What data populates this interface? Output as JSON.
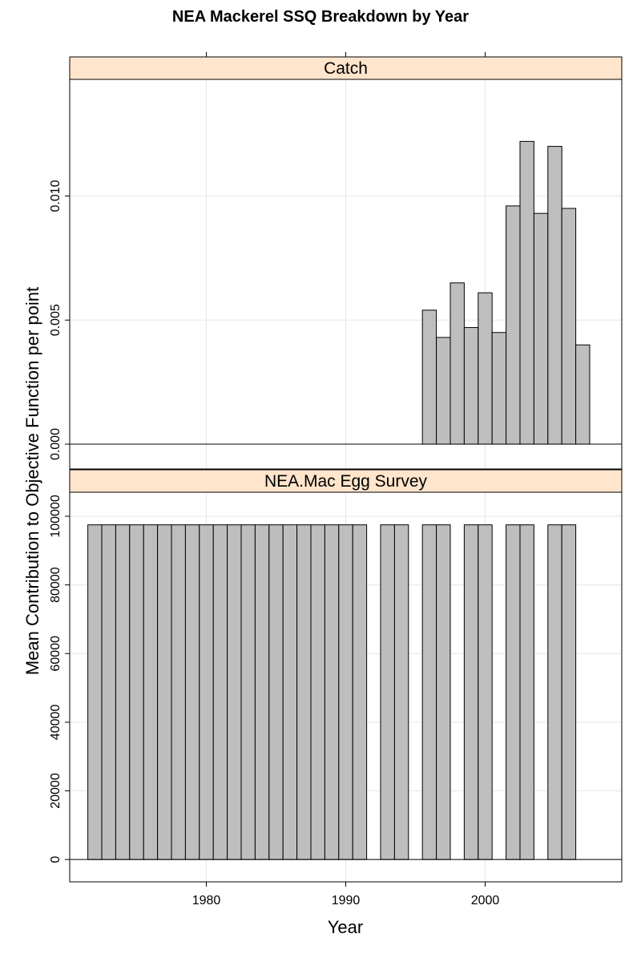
{
  "chart_data": {
    "type": "bar",
    "title": "NEA Mackerel SSQ Breakdown by Year",
    "xlabel": "Year",
    "ylabel": "Mean Contribution to Objective Function per point",
    "xlim": [
      1970.2,
      2009.8
    ],
    "x_ticks": [
      1980,
      1990,
      2000
    ],
    "x_tick_labels": [
      "1980",
      "1990",
      "2000"
    ],
    "grid": true,
    "colors": {
      "bar_fill": "#bebebe",
      "strip_fill": "#ffe5cc",
      "grid": "#e6e6e6"
    },
    "panels": [
      {
        "name": "Catch",
        "ylim": [
          -0.001,
          0.0147
        ],
        "y_ticks": [
          0,
          0.005,
          0.01
        ],
        "y_tick_labels": [
          "0.000",
          "0.005",
          "0.010"
        ],
        "x": [
          1996,
          1997,
          1998,
          1999,
          2000,
          2001,
          2002,
          2003,
          2004,
          2005,
          2006,
          2007
        ],
        "values": [
          0.0054,
          0.0043,
          0.0065,
          0.0047,
          0.0061,
          0.0045,
          0.0096,
          0.0122,
          0.0093,
          0.012,
          0.0095,
          0.004
        ]
      },
      {
        "name": "NEA.Mac Egg Survey",
        "ylim": [
          -6500,
          107000
        ],
        "y_ticks": [
          0,
          20000,
          40000,
          60000,
          80000,
          100000
        ],
        "y_tick_labels": [
          "0",
          "20000",
          "40000",
          "60000",
          "80000",
          "100000"
        ],
        "x": [
          1972,
          1973,
          1974,
          1975,
          1976,
          1977,
          1978,
          1979,
          1980,
          1981,
          1982,
          1983,
          1984,
          1985,
          1986,
          1987,
          1988,
          1989,
          1990,
          1991,
          1993,
          1994,
          1996,
          1997,
          1999,
          2000,
          2002,
          2003,
          2005,
          2006
        ],
        "values": [
          97500,
          97500,
          97500,
          97500,
          97500,
          97500,
          97500,
          97500,
          97500,
          97500,
          97500,
          97500,
          97500,
          97500,
          97500,
          97500,
          97500,
          97500,
          97500,
          97500,
          97500,
          97500,
          97500,
          97500,
          97500,
          97500,
          97500,
          97500,
          97500,
          97500
        ]
      }
    ]
  }
}
